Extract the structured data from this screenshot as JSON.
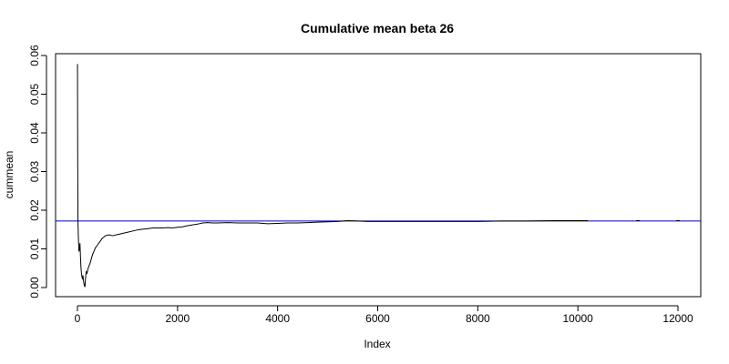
{
  "chart_data": {
    "type": "line",
    "title": "Cumulative mean beta 26",
    "xlabel": "Index",
    "ylabel": "cummean",
    "xlim": [
      0,
      12000
    ],
    "ylim": [
      0,
      0.06
    ],
    "x_ticks": [
      0,
      2000,
      4000,
      6000,
      8000,
      10000,
      12000
    ],
    "x_tick_labels": [
      "0",
      "2000",
      "4000",
      "6000",
      "8000",
      "10000",
      "12000"
    ],
    "y_ticks": [
      0,
      0.01,
      0.02,
      0.03,
      0.04,
      0.05,
      0.06
    ],
    "y_tick_labels": [
      "0.00",
      "0.01",
      "0.02",
      "0.03",
      "0.04",
      "0.05",
      "0.06"
    ],
    "grid": false,
    "reference_line": {
      "y": 0.0172,
      "color": "#0000cc"
    },
    "series": [
      {
        "color": "#000000",
        "x": [
          1,
          5,
          10,
          15,
          20,
          25,
          30,
          40,
          50,
          60,
          70,
          80,
          90,
          100,
          110,
          120,
          130,
          140,
          150,
          160,
          175,
          190,
          210,
          230,
          250,
          270,
          300,
          330,
          360,
          400,
          450,
          500,
          550,
          600,
          650,
          700,
          800,
          900,
          1000,
          1100,
          1200,
          1300,
          1400,
          1500,
          1600,
          1700,
          1800,
          1900,
          2000,
          2100,
          2200,
          2300,
          2400,
          2500,
          2600,
          2700,
          2800,
          3000,
          3200,
          3400,
          3600,
          3800,
          4000,
          4200,
          4400,
          4600,
          4800,
          5000,
          5200,
          5400,
          5600,
          5800,
          6000,
          6500,
          7000,
          7500,
          8000,
          8500,
          9000,
          9500,
          10000,
          10200
        ],
        "y": [
          0.0578,
          0.0346,
          0.0175,
          0.0146,
          0.0124,
          0.0107,
          0.0094,
          0.0098,
          0.0114,
          0.0081,
          0.0052,
          0.0037,
          0.0028,
          0.0022,
          0.0031,
          0.0018,
          0.001,
          0.0004,
          0.0002,
          0.0023,
          0.0042,
          0.0036,
          0.0048,
          0.0056,
          0.0062,
          0.0071,
          0.0085,
          0.0094,
          0.0103,
          0.011,
          0.0119,
          0.0128,
          0.0133,
          0.0136,
          0.0136,
          0.0134,
          0.0137,
          0.014,
          0.0143,
          0.0146,
          0.0149,
          0.0151,
          0.0152,
          0.0154,
          0.0154,
          0.0154,
          0.0155,
          0.0154,
          0.0156,
          0.0157,
          0.016,
          0.0162,
          0.0164,
          0.0167,
          0.0168,
          0.0167,
          0.0167,
          0.0168,
          0.0167,
          0.0167,
          0.0167,
          0.0165,
          0.0166,
          0.0167,
          0.0167,
          0.0168,
          0.0169,
          0.017,
          0.0171,
          0.0173,
          0.0172,
          0.0171,
          0.0171,
          0.0171,
          0.0171,
          0.0171,
          0.0171,
          0.0172,
          0.0172,
          0.0173,
          0.0173,
          0.0173
        ]
      }
    ],
    "sparse_points": [
      {
        "x": 11200,
        "y": 0.0173
      },
      {
        "x": 12000,
        "y": 0.0173
      }
    ]
  }
}
